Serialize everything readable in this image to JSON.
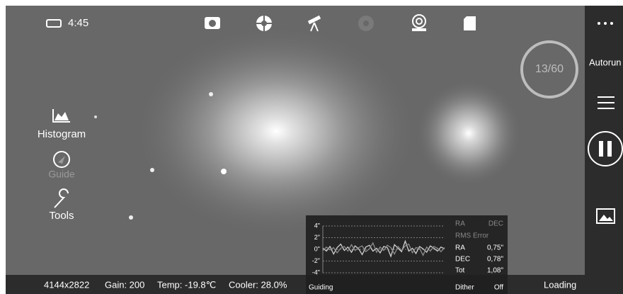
{
  "status_bar": {
    "time": "4:45"
  },
  "left_menu": {
    "histogram": "Histogram",
    "guide": "Guide",
    "tools": "Tools"
  },
  "exposure_counter": "13/60",
  "right_bar": {
    "autorun": "Autorun"
  },
  "bottom_bar": {
    "resolution": "4144x2822",
    "gain": "Gain: 200",
    "temperature": "Temp: -19.8℃",
    "cooler": "Cooler: 28.0%",
    "status": "Loading"
  },
  "guide_panel": {
    "header": {
      "ra": "RA",
      "dec": "DEC"
    },
    "rms_title": "RMS Error",
    "rows": [
      [
        "RA",
        "0,75\""
      ],
      [
        "DEC",
        "0,78\""
      ],
      [
        "Tot",
        "1,08\""
      ]
    ],
    "footer": {
      "state": "Guiding",
      "dither_label": "Dither",
      "dither_value": "Off"
    },
    "chart_data": {
      "type": "line",
      "ylim": [
        -4,
        4
      ],
      "yticks": [
        {
          "value": 4,
          "label": "4\""
        },
        {
          "value": 2,
          "label": "2\""
        },
        {
          "value": 0,
          "label": "0\""
        },
        {
          "value": -2,
          "label": "-2\""
        },
        {
          "value": -4,
          "label": "-4\""
        }
      ],
      "grid": true,
      "series": [
        {
          "color": "#d0d0d0",
          "values": [
            0.2,
            -0.3,
            0.5,
            -0.8,
            0.3,
            0.9,
            -0.2,
            0.4,
            -0.5,
            0.6,
            0.1,
            -0.9,
            0.4,
            0.7,
            -0.3,
            0.2,
            -0.6,
            0.5,
            0.3,
            -1.2,
            0.8,
            0.2,
            -0.4,
            1.4,
            -0.3,
            0.2,
            -0.7,
            0.5,
            0.1,
            -0.5,
            0.6,
            0.2,
            -0.3,
            0.4,
            0.1
          ]
        },
        {
          "color": "#8c8c8c",
          "values": [
            -0.2,
            0.4,
            -0.1,
            0.3,
            -0.6,
            0.2,
            0.5,
            -0.3,
            0.8,
            -0.2,
            0.3,
            0.6,
            -0.4,
            0.1,
            1.1,
            -0.5,
            0.4,
            -0.2,
            0.7,
            0.3,
            -0.8,
            0.5,
            -0.2,
            0.6,
            0.9,
            -0.6,
            0.3,
            0.2,
            -1.0,
            0.4,
            -0.3,
            0.5,
            0.2,
            -0.4,
            0.3
          ]
        }
      ]
    }
  }
}
